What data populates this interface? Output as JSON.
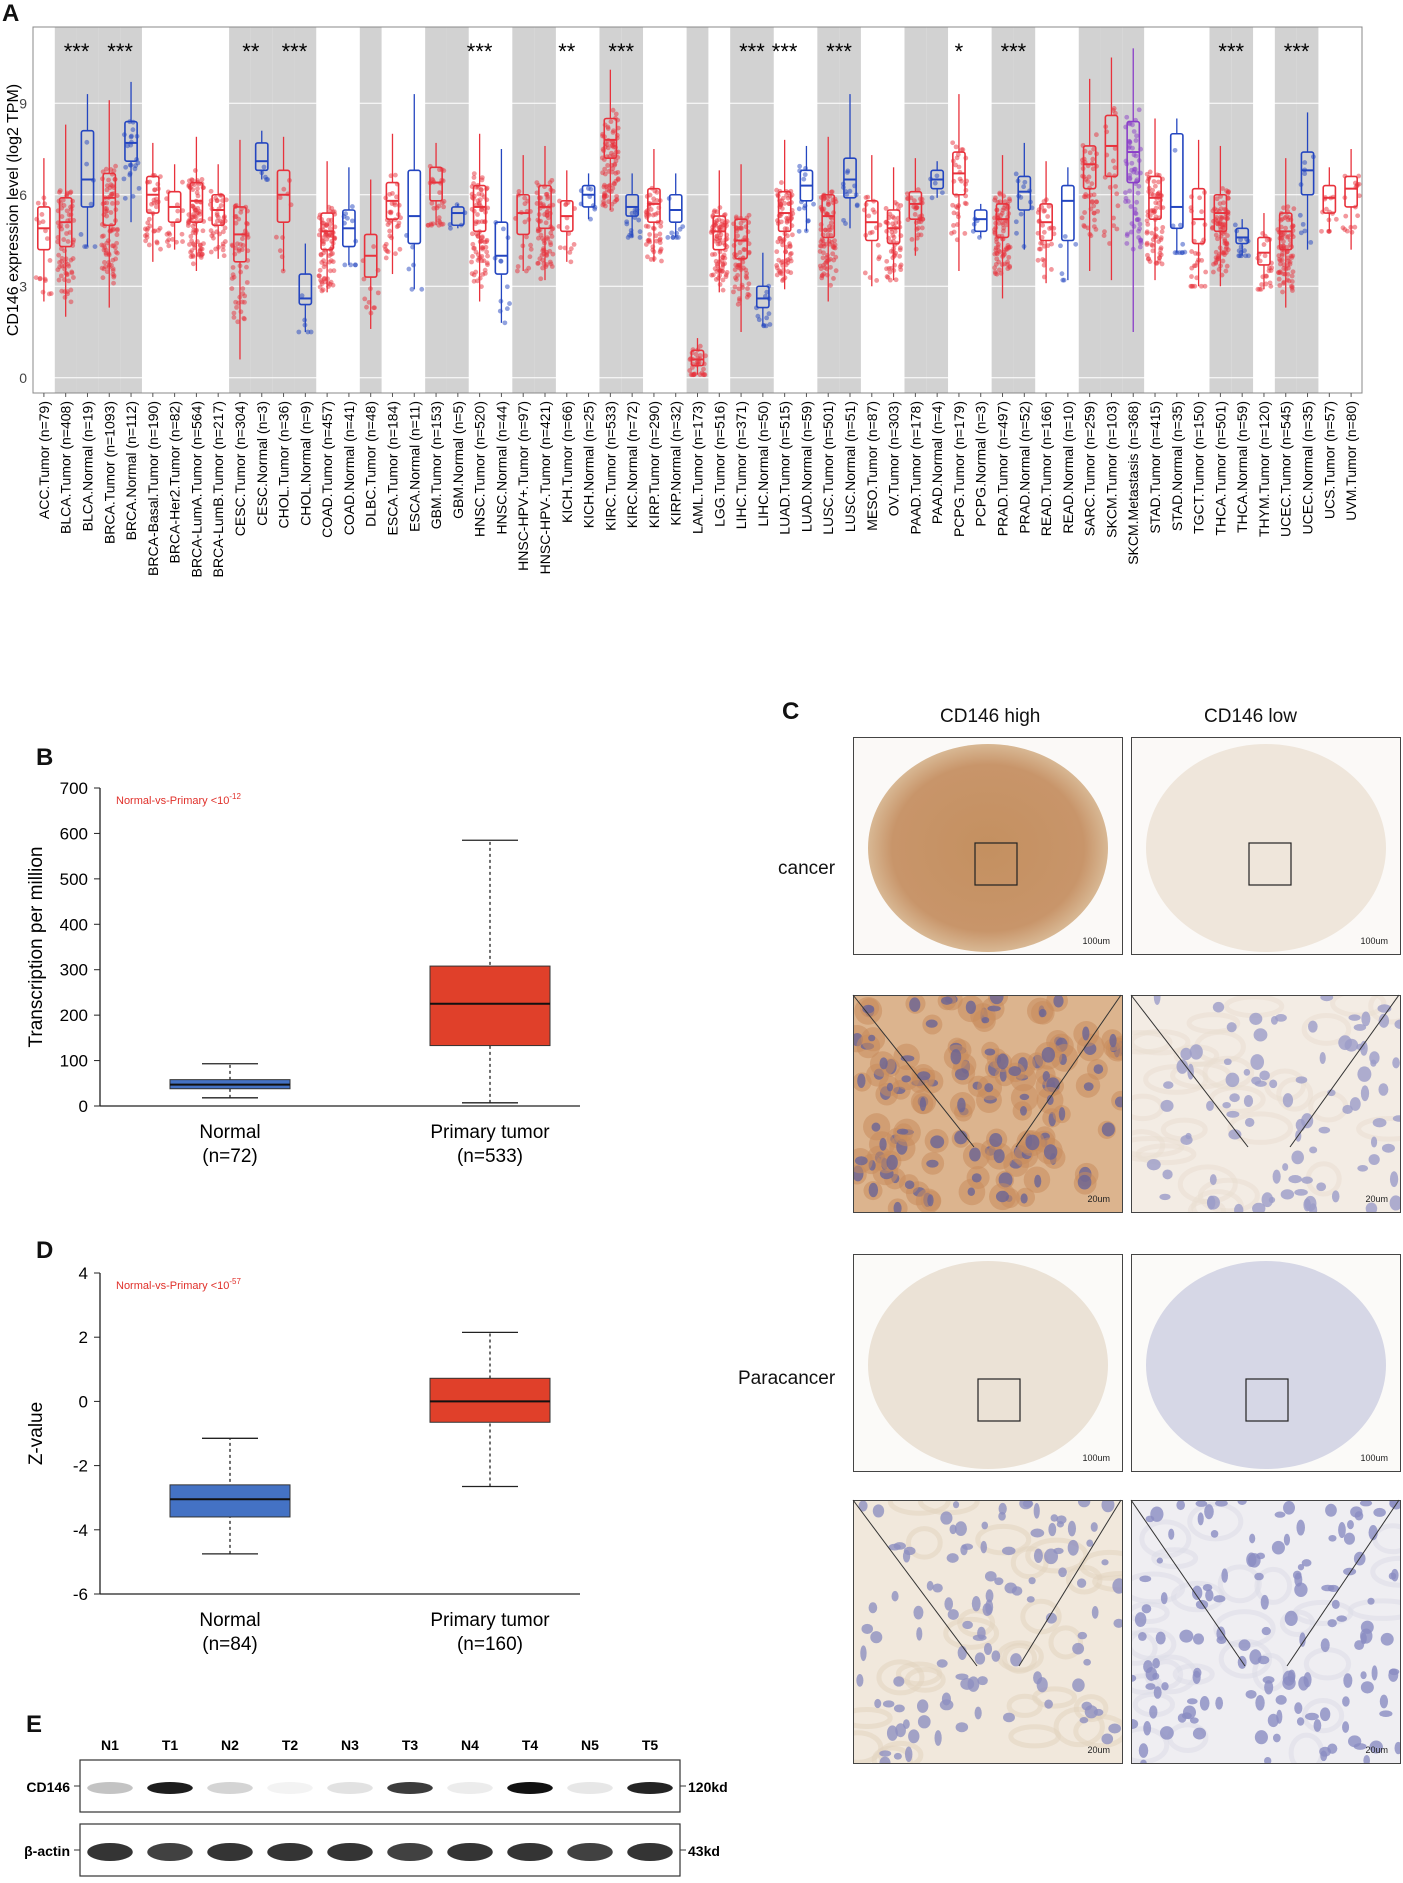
{
  "panels": {
    "A": "A",
    "B": "B",
    "C": "C",
    "D": "D",
    "E": "E"
  },
  "chart_data": [
    {
      "id": "A",
      "type": "box",
      "ylabel": "CD146 expression level (log2 TPM)",
      "yticks": [
        0,
        3,
        6,
        9
      ],
      "ylim": [
        -0.5,
        11.5
      ],
      "categories": [
        {
          "label": "ACC.Tumor (n=79)",
          "kind": "tumor",
          "q": [
            2.5,
            4.2,
            4.9,
            5.6,
            7.2
          ],
          "sig": "",
          "shade": false
        },
        {
          "label": "BLCA.Tumor (n=408)",
          "kind": "tumor",
          "q": [
            2.0,
            4.3,
            5.1,
            5.9,
            8.3
          ],
          "sig": "***",
          "shade": true
        },
        {
          "label": "BLCA.Normal (n=19)",
          "kind": "normal",
          "q": [
            4.3,
            5.6,
            6.5,
            8.1,
            9.3
          ],
          "sig": "",
          "shade": true
        },
        {
          "label": "BRCA.Tumor (n=1093)",
          "kind": "tumor",
          "q": [
            2.3,
            5.0,
            5.9,
            6.7,
            9.1
          ],
          "sig": "***",
          "shade": true
        },
        {
          "label": "BRCA.Normal (n=112)",
          "kind": "normal",
          "q": [
            5.1,
            7.1,
            7.7,
            8.4,
            9.7
          ],
          "sig": "",
          "shade": true
        },
        {
          "label": "BRCA-Basal.Tumor (n=190)",
          "kind": "tumor",
          "q": [
            3.8,
            5.4,
            6.0,
            6.6,
            7.7
          ],
          "sig": "",
          "shade": false
        },
        {
          "label": "BRCA-Her2.Tumor (n=82)",
          "kind": "tumor",
          "q": [
            4.2,
            5.1,
            5.6,
            6.1,
            7.0
          ],
          "sig": "",
          "shade": false
        },
        {
          "label": "BRCA-LumA.Tumor (n=564)",
          "kind": "tumor",
          "q": [
            3.5,
            5.1,
            5.8,
            6.4,
            7.9
          ],
          "sig": "",
          "shade": false
        },
        {
          "label": "BRCA-LumB.Tumor (n=217)",
          "kind": "tumor",
          "q": [
            3.9,
            5.0,
            5.5,
            6.0,
            7.0
          ],
          "sig": "",
          "shade": false
        },
        {
          "label": "CESC.Tumor (n=304)",
          "kind": "tumor",
          "q": [
            0.6,
            3.8,
            4.7,
            5.6,
            7.8
          ],
          "sig": "**",
          "shade": true
        },
        {
          "label": "CESC.Normal (n=3)",
          "kind": "normal",
          "q": [
            6.5,
            6.8,
            7.1,
            7.7,
            8.1
          ],
          "sig": "",
          "shade": true
        },
        {
          "label": "CHOL.Tumor (n=36)",
          "kind": "tumor",
          "q": [
            3.5,
            5.1,
            6.0,
            6.8,
            7.9
          ],
          "sig": "***",
          "shade": true
        },
        {
          "label": "CHOL.Normal (n=9)",
          "kind": "normal",
          "q": [
            1.5,
            2.4,
            2.6,
            3.4,
            4.4
          ],
          "sig": "",
          "shade": true
        },
        {
          "label": "COAD.Tumor (n=457)",
          "kind": "tumor",
          "q": [
            2.8,
            4.2,
            4.8,
            5.4,
            7.1
          ],
          "sig": "",
          "shade": false
        },
        {
          "label": "COAD.Normal (n=41)",
          "kind": "normal",
          "q": [
            3.7,
            4.3,
            4.9,
            5.5,
            6.9
          ],
          "sig": "",
          "shade": false
        },
        {
          "label": "DLBC.Tumor (n=48)",
          "kind": "tumor",
          "q": [
            1.6,
            3.3,
            4.0,
            4.7,
            6.5
          ],
          "sig": "",
          "shade": true
        },
        {
          "label": "ESCA.Tumor (n=184)",
          "kind": "tumor",
          "q": [
            3.4,
            5.2,
            5.8,
            6.4,
            8.0
          ],
          "sig": "",
          "shade": false
        },
        {
          "label": "ESCA.Normal (n=11)",
          "kind": "normal",
          "q": [
            2.9,
            4.4,
            5.3,
            6.8,
            9.3
          ],
          "sig": "",
          "shade": false
        },
        {
          "label": "GBM.Tumor (n=153)",
          "kind": "tumor",
          "q": [
            5.0,
            5.8,
            6.4,
            6.9,
            7.7
          ],
          "sig": "",
          "shade": true
        },
        {
          "label": "GBM.Normal (n=5)",
          "kind": "normal",
          "q": [
            4.9,
            5.0,
            5.4,
            5.6,
            5.7
          ],
          "sig": "",
          "shade": true
        },
        {
          "label": "HNSC.Tumor (n=520)",
          "kind": "tumor",
          "q": [
            2.5,
            4.8,
            5.6,
            6.3,
            8.0
          ],
          "sig": "***",
          "shade": false
        },
        {
          "label": "HNSC.Normal (n=44)",
          "kind": "normal",
          "q": [
            1.8,
            3.4,
            4.0,
            5.1,
            7.5
          ],
          "sig": "",
          "shade": false
        },
        {
          "label": "HNSC-HPV+.Tumor (n=97)",
          "kind": "tumor",
          "q": [
            3.5,
            4.7,
            5.4,
            6.0,
            7.3
          ],
          "sig": "",
          "shade": true
        },
        {
          "label": "HNSC-HPV-.Tumor (n=421)",
          "kind": "tumor",
          "q": [
            3.2,
            4.9,
            5.6,
            6.3,
            7.6
          ],
          "sig": "",
          "shade": true
        },
        {
          "label": "KICH.Tumor (n=66)",
          "kind": "tumor",
          "q": [
            3.8,
            4.8,
            5.3,
            5.8,
            6.8
          ],
          "sig": "**",
          "shade": false
        },
        {
          "label": "KICH.Normal (n=25)",
          "kind": "normal",
          "q": [
            5.2,
            5.6,
            6.0,
            6.3,
            6.7
          ],
          "sig": "",
          "shade": false
        },
        {
          "label": "KIRC.Tumor (n=533)",
          "kind": "tumor",
          "q": [
            5.5,
            7.2,
            7.8,
            8.5,
            10.1
          ],
          "sig": "***",
          "shade": true
        },
        {
          "label": "KIRC.Normal (n=72)",
          "kind": "normal",
          "q": [
            4.6,
            5.3,
            5.6,
            6.0,
            6.7
          ],
          "sig": "",
          "shade": true
        },
        {
          "label": "KIRP.Tumor (n=290)",
          "kind": "tumor",
          "q": [
            3.8,
            5.1,
            5.7,
            6.2,
            7.5
          ],
          "sig": "",
          "shade": false
        },
        {
          "label": "KIRP.Normal (n=32)",
          "kind": "normal",
          "q": [
            4.6,
            5.1,
            5.5,
            6.0,
            6.7
          ],
          "sig": "",
          "shade": false
        },
        {
          "label": "LAML.Tumor (n=173)",
          "kind": "tumor",
          "q": [
            0.1,
            0.4,
            0.6,
            0.9,
            1.3
          ],
          "sig": "",
          "shade": true
        },
        {
          "label": "LGG.Tumor (n=516)",
          "kind": "tumor",
          "q": [
            2.8,
            4.2,
            4.8,
            5.3,
            6.8
          ],
          "sig": "",
          "shade": false
        },
        {
          "label": "LIHC.Tumor (n=371)",
          "kind": "tumor",
          "q": [
            1.5,
            3.9,
            4.5,
            5.2,
            7.0
          ],
          "sig": "***",
          "shade": true
        },
        {
          "label": "LIHC.Normal (n=50)",
          "kind": "normal",
          "q": [
            1.7,
            2.3,
            2.6,
            3.0,
            4.1
          ],
          "sig": "",
          "shade": true
        },
        {
          "label": "LUAD.Tumor (n=515)",
          "kind": "tumor",
          "q": [
            2.9,
            4.8,
            5.4,
            6.1,
            7.8
          ],
          "sig": "***",
          "shade": false
        },
        {
          "label": "LUAD.Normal (n=59)",
          "kind": "normal",
          "q": [
            4.8,
            5.8,
            6.3,
            6.8,
            7.6
          ],
          "sig": "",
          "shade": false
        },
        {
          "label": "LUSC.Tumor (n=501)",
          "kind": "tumor",
          "q": [
            2.5,
            4.6,
            5.3,
            6.0,
            7.9
          ],
          "sig": "***",
          "shade": true
        },
        {
          "label": "LUSC.Normal (n=51)",
          "kind": "normal",
          "q": [
            4.9,
            5.9,
            6.5,
            7.2,
            9.3
          ],
          "sig": "",
          "shade": true
        },
        {
          "label": "MESO.Tumor (n=87)",
          "kind": "tumor",
          "q": [
            3.0,
            4.5,
            5.1,
            5.8,
            7.3
          ],
          "sig": "",
          "shade": false
        },
        {
          "label": "OV.Tumor (n=303)",
          "kind": "tumor",
          "q": [
            3.2,
            4.4,
            4.9,
            5.5,
            6.9
          ],
          "sig": "",
          "shade": false
        },
        {
          "label": "PAAD.Tumor (n=178)",
          "kind": "tumor",
          "q": [
            4.0,
            5.2,
            5.7,
            6.1,
            7.2
          ],
          "sig": "",
          "shade": true
        },
        {
          "label": "PAAD.Normal (n=4)",
          "kind": "normal",
          "q": [
            5.9,
            6.2,
            6.5,
            6.8,
            7.1
          ],
          "sig": "",
          "shade": true
        },
        {
          "label": "PCPG.Tumor (n=179)",
          "kind": "tumor",
          "q": [
            3.5,
            6.0,
            6.7,
            7.4,
            9.3
          ],
          "sig": "*",
          "shade": false
        },
        {
          "label": "PCPG.Normal (n=3)",
          "kind": "normal",
          "q": [
            4.6,
            4.8,
            5.2,
            5.5,
            5.7
          ],
          "sig": "",
          "shade": false
        },
        {
          "label": "PRAD.Tumor (n=497)",
          "kind": "tumor",
          "q": [
            2.6,
            4.6,
            5.2,
            5.7,
            7.3
          ],
          "sig": "***",
          "shade": true
        },
        {
          "label": "PRAD.Normal (n=52)",
          "kind": "normal",
          "q": [
            4.2,
            5.5,
            6.1,
            6.6,
            7.7
          ],
          "sig": "",
          "shade": true
        },
        {
          "label": "READ.Tumor (n=166)",
          "kind": "tumor",
          "q": [
            3.1,
            4.5,
            5.1,
            5.7,
            7.1
          ],
          "sig": "",
          "shade": false
        },
        {
          "label": "READ.Normal (n=10)",
          "kind": "normal",
          "q": [
            3.2,
            4.5,
            5.8,
            6.3,
            6.9
          ],
          "sig": "",
          "shade": false
        },
        {
          "label": "SARC.Tumor (n=259)",
          "kind": "tumor",
          "q": [
            3.5,
            6.2,
            7.0,
            7.6,
            9.8
          ],
          "sig": "",
          "shade": true
        },
        {
          "label": "SKCM.Tumor (n=103)",
          "kind": "tumor",
          "q": [
            3.2,
            6.6,
            7.6,
            8.6,
            10.5
          ],
          "sig": "",
          "shade": true
        },
        {
          "label": "SKCM.Metastasis (n=368)",
          "kind": "metastasis",
          "q": [
            1.5,
            6.4,
            7.4,
            8.4,
            10.8
          ],
          "sig": "",
          "shade": true
        },
        {
          "label": "STAD.Tumor (n=415)",
          "kind": "tumor",
          "q": [
            3.2,
            5.2,
            5.9,
            6.6,
            8.5
          ],
          "sig": "",
          "shade": false
        },
        {
          "label": "STAD.Normal (n=35)",
          "kind": "normal",
          "q": [
            4.1,
            4.9,
            5.6,
            8.0,
            8.5
          ],
          "sig": "",
          "shade": false
        },
        {
          "label": "TGCT.Tumor (n=150)",
          "kind": "tumor",
          "q": [
            3.0,
            4.4,
            5.2,
            6.2,
            7.8
          ],
          "sig": "",
          "shade": false
        },
        {
          "label": "THCA.Tumor (n=501)",
          "kind": "tumor",
          "q": [
            3.0,
            4.8,
            5.4,
            6.0,
            7.6
          ],
          "sig": "***",
          "shade": true
        },
        {
          "label": "THCA.Normal (n=59)",
          "kind": "normal",
          "q": [
            4.0,
            4.4,
            4.6,
            4.9,
            5.2
          ],
          "sig": "",
          "shade": true
        },
        {
          "label": "THYM.Tumor (n=120)",
          "kind": "tumor",
          "q": [
            2.9,
            3.7,
            4.1,
            4.6,
            5.4
          ],
          "sig": "",
          "shade": false
        },
        {
          "label": "UCEC.Tumor (n=545)",
          "kind": "tumor",
          "q": [
            2.3,
            4.2,
            4.8,
            5.4,
            7.2
          ],
          "sig": "***",
          "shade": true
        },
        {
          "label": "UCEC.Normal (n=35)",
          "kind": "normal",
          "q": [
            4.2,
            6.0,
            6.8,
            7.4,
            8.7
          ],
          "sig": "",
          "shade": true
        },
        {
          "label": "UCS.Tumor (n=57)",
          "kind": "tumor",
          "q": [
            4.8,
            5.4,
            5.9,
            6.3,
            6.9
          ],
          "sig": "",
          "shade": false
        },
        {
          "label": "UVM.Tumor (n=80)",
          "kind": "tumor",
          "q": [
            4.2,
            5.6,
            6.2,
            6.6,
            7.5
          ],
          "sig": "",
          "shade": false
        }
      ]
    },
    {
      "id": "B",
      "type": "box",
      "ylabel": "Transcription per million",
      "annotation_prefix": "Normal-vs-Primary <10",
      "annotation_exp": "-12",
      "yticks": [
        0,
        100,
        200,
        300,
        400,
        500,
        600,
        700
      ],
      "ylim": [
        0,
        700
      ],
      "boxes": [
        {
          "name": "Normal",
          "n": "(n=72)",
          "q": [
            18,
            38,
            47,
            58,
            93
          ],
          "color": "#4472c4"
        },
        {
          "name": "Primary tumor",
          "n": "(n=533)",
          "q": [
            7,
            133,
            225,
            308,
            585
          ],
          "color": "#e0402a"
        }
      ]
    },
    {
      "id": "D",
      "type": "box",
      "ylabel": "Z-value",
      "annotation_prefix": "Normal-vs-Primary <10",
      "annotation_exp": "-57",
      "yticks": [
        4,
        2,
        0,
        -2,
        -4,
        -6
      ],
      "ylim": [
        -6,
        4
      ],
      "boxes": [
        {
          "name": "Normal",
          "n": "(n=84)",
          "q": [
            -4.75,
            -3.6,
            -3.05,
            -2.6,
            -1.15
          ],
          "color": "#4472c4"
        },
        {
          "name": "Primary tumor",
          "n": "(n=160)",
          "q": [
            -2.65,
            -0.65,
            0.0,
            0.72,
            2.15
          ],
          "color": "#e0402a"
        }
      ]
    },
    {
      "id": "E",
      "type": "western-blot",
      "lanes": [
        "N1",
        "T1",
        "N2",
        "T2",
        "N3",
        "T3",
        "N4",
        "T4",
        "N5",
        "T5"
      ],
      "rows": [
        {
          "name": "CD146",
          "size": "120kd",
          "intensity": [
            0.25,
            0.95,
            0.18,
            0.03,
            0.12,
            0.82,
            0.08,
            1.0,
            0.1,
            0.92
          ]
        },
        {
          "name": "β-actin",
          "size": "43kd",
          "intensity": [
            0.85,
            0.8,
            0.85,
            0.85,
            0.85,
            0.8,
            0.85,
            0.85,
            0.8,
            0.85
          ]
        }
      ]
    }
  ],
  "ihc": {
    "col_high": "CD146 high",
    "col_low": "CD146 low",
    "row_cancer": "cancer",
    "row_para": "Paracancer",
    "scale_100": "100um",
    "scale_20": "20um"
  },
  "colors": {
    "tumor": "#e8323c",
    "normal": "#2446c0",
    "metastasis": "#8a3ec8",
    "shade": "#d2d2d2"
  }
}
